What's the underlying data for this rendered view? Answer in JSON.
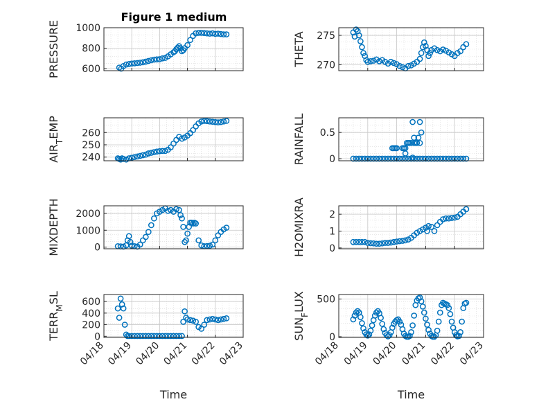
{
  "figure": {
    "title": "Figure 1 medium"
  },
  "style": {
    "marker_color": "#0072BD",
    "axis_color": "#262626",
    "grid_color": "#d9d9d9",
    "background": "#ffffff"
  },
  "chart_data": [
    {
      "type": "scatter",
      "ylabel": "PRESSURE",
      "ylabel_main": "PRESSURE",
      "ylabel_sub": "",
      "ylabel_tail": "",
      "xlabel": "",
      "xlim": [
        0,
        5
      ],
      "ylim": [
        580,
        1000
      ],
      "yticks": [
        600,
        800,
        1000
      ],
      "xticks_shown": false,
      "grid": true,
      "x": [
        0.55,
        0.62,
        0.7,
        0.8,
        0.9,
        1.0,
        1.1,
        1.2,
        1.3,
        1.4,
        1.5,
        1.6,
        1.7,
        1.8,
        1.9,
        2.0,
        2.1,
        2.2,
        2.3,
        2.4,
        2.5,
        2.55,
        2.6,
        2.65,
        2.7,
        2.75,
        2.8,
        2.85,
        2.9,
        3.0,
        3.1,
        3.2,
        3.3,
        3.4,
        3.5,
        3.6,
        3.7,
        3.8,
        3.9,
        4.0,
        4.1,
        4.2,
        4.3,
        4.4
      ],
      "y": [
        610,
        600,
        625,
        640,
        645,
        650,
        652,
        655,
        658,
        662,
        668,
        675,
        682,
        688,
        690,
        692,
        700,
        705,
        720,
        740,
        760,
        770,
        790,
        805,
        820,
        800,
        770,
        780,
        800,
        830,
        880,
        920,
        945,
        950,
        950,
        948,
        945,
        942,
        945,
        940,
        942,
        938,
        935,
        935
      ]
    },
    {
      "type": "scatter",
      "ylabel": "THETA",
      "ylabel_main": "THETA",
      "ylabel_sub": "",
      "ylabel_tail": "",
      "xlabel": "",
      "xlim": [
        0,
        5
      ],
      "ylim": [
        269,
        276.3
      ],
      "yticks": [
        270,
        275
      ],
      "xticks_shown": false,
      "grid": true,
      "x": [
        0.5,
        0.55,
        0.6,
        0.65,
        0.7,
        0.75,
        0.8,
        0.85,
        0.9,
        0.95,
        1.0,
        1.1,
        1.2,
        1.3,
        1.4,
        1.5,
        1.6,
        1.7,
        1.8,
        1.9,
        2.0,
        2.1,
        2.2,
        2.3,
        2.4,
        2.5,
        2.6,
        2.7,
        2.8,
        2.85,
        2.9,
        2.95,
        3.0,
        3.05,
        3.1,
        3.15,
        3.2,
        3.3,
        3.4,
        3.5,
        3.6,
        3.7,
        3.8,
        3.9,
        4.0,
        4.1,
        4.2,
        4.3,
        4.4
      ],
      "y": [
        275.5,
        274.8,
        276,
        275.7,
        275,
        274,
        273,
        272,
        271.5,
        270.8,
        270.5,
        270.6,
        270.7,
        270.9,
        270.6,
        270.8,
        270.5,
        270.2,
        270.5,
        270.3,
        270.1,
        269.8,
        269.6,
        269.4,
        269.8,
        269.9,
        270.2,
        270.5,
        271,
        272,
        273,
        273.8,
        273.2,
        272.5,
        271.5,
        272,
        272.5,
        272.8,
        272.5,
        272.3,
        272.6,
        272.4,
        272.1,
        271.8,
        271.5,
        272,
        272.3,
        273,
        273.5
      ]
    },
    {
      "type": "scatter",
      "ylabel": "AIR_TEMP",
      "ylabel_main": "AIR",
      "ylabel_sub": "T",
      "ylabel_tail": "EMP",
      "xlabel": "",
      "xlim": [
        0,
        5
      ],
      "ylim": [
        237,
        272
      ],
      "yticks": [
        240,
        250,
        260
      ],
      "xticks_shown": false,
      "grid": true,
      "x": [
        0.5,
        0.55,
        0.6,
        0.65,
        0.7,
        0.8,
        0.9,
        1.0,
        1.1,
        1.2,
        1.3,
        1.4,
        1.5,
        1.6,
        1.7,
        1.8,
        1.9,
        2.0,
        2.1,
        2.2,
        2.3,
        2.4,
        2.5,
        2.6,
        2.7,
        2.8,
        2.9,
        3.0,
        3.1,
        3.2,
        3.3,
        3.4,
        3.5,
        3.6,
        3.7,
        3.8,
        3.9,
        4.0,
        4.1,
        4.2,
        4.3,
        4.4
      ],
      "y": [
        239,
        238.5,
        238,
        239,
        238.5,
        238,
        239,
        239.5,
        240,
        240.5,
        241,
        241.5,
        242,
        243,
        243.5,
        244,
        244.5,
        244.8,
        245,
        245,
        246,
        248,
        251,
        254,
        256.5,
        255,
        256,
        257.5,
        259.5,
        262,
        265,
        267.5,
        269,
        269.5,
        269.3,
        269,
        268.8,
        268.5,
        268.3,
        268.5,
        269,
        269.5
      ]
    },
    {
      "type": "scatter",
      "ylabel": "RAINFALL",
      "ylabel_main": "RAINFALL",
      "ylabel_sub": "",
      "ylabel_tail": "",
      "xlabel": "",
      "xlim": [
        0,
        5
      ],
      "ylim": [
        -0.04,
        0.78
      ],
      "yticks": [
        0,
        0.5
      ],
      "ytick_labels": [
        "0",
        "0.5"
      ],
      "xticks_shown": false,
      "grid": true,
      "x": [
        0.5,
        0.6,
        0.7,
        0.8,
        0.9,
        1.0,
        1.1,
        1.2,
        1.3,
        1.4,
        1.5,
        1.6,
        1.7,
        1.8,
        1.9,
        2.0,
        2.1,
        2.2,
        2.3,
        2.4,
        2.5,
        2.6,
        2.7,
        2.8,
        2.9,
        3.0,
        3.1,
        3.2,
        3.3,
        3.4,
        3.5,
        3.6,
        3.7,
        3.8,
        3.9,
        4.0,
        4.1,
        4.2,
        4.3,
        4.4,
        1.85,
        1.9,
        1.95,
        2.0,
        2.2,
        2.25,
        2.3,
        2.35,
        2.4,
        2.5,
        2.6,
        2.65,
        2.7,
        2.3,
        2.45,
        2.6,
        2.75,
        2.8,
        2.55,
        2.8,
        2.55,
        2.85
      ],
      "y": [
        0,
        0,
        0,
        0,
        0,
        0,
        0,
        0,
        0,
        0,
        0,
        0,
        0,
        0,
        0,
        0,
        0,
        0,
        0,
        0,
        0,
        0,
        0,
        0,
        0,
        0,
        0,
        0,
        0,
        0,
        0,
        0,
        0,
        0,
        0,
        0,
        0,
        0,
        0,
        0,
        0.2,
        0.2,
        0.2,
        0.2,
        0.2,
        0.2,
        0.2,
        0.3,
        0.3,
        0.3,
        0.3,
        0.3,
        0.3,
        0.1,
        0.3,
        0.4,
        0.4,
        0.3,
        0.7,
        0.7,
        0.02,
        0.5
      ]
    },
    {
      "type": "scatter",
      "ylabel": "MIXDEPTH",
      "ylabel_main": "MIXDEPTH",
      "ylabel_sub": "",
      "ylabel_tail": "",
      "xlabel": "",
      "xlim": [
        0,
        5
      ],
      "ylim": [
        -100,
        2450
      ],
      "yticks": [
        0,
        1000,
        2000
      ],
      "xticks_shown": false,
      "grid": true,
      "x": [
        0.5,
        0.6,
        0.7,
        0.8,
        0.85,
        0.9,
        0.95,
        1.0,
        1.1,
        1.2,
        1.3,
        1.4,
        1.5,
        1.6,
        1.7,
        1.8,
        1.9,
        2.0,
        2.1,
        2.2,
        2.3,
        2.4,
        2.5,
        2.6,
        2.7,
        2.75,
        2.8,
        2.85,
        2.9,
        2.95,
        3.0,
        3.05,
        3.1,
        3.15,
        3.2,
        3.25,
        3.3,
        3.4,
        3.5,
        3.6,
        3.7,
        3.8,
        3.9,
        4.0,
        4.1,
        4.2,
        4.3,
        4.4
      ],
      "y": [
        50,
        40,
        30,
        100,
        400,
        650,
        300,
        80,
        50,
        30,
        150,
        400,
        600,
        900,
        1300,
        1700,
        2000,
        2100,
        2200,
        2300,
        2150,
        2200,
        2100,
        2250,
        2200,
        1900,
        1700,
        1200,
        300,
        400,
        800,
        1200,
        1450,
        1450,
        1400,
        1450,
        1400,
        400,
        100,
        50,
        60,
        80,
        150,
        400,
        700,
        900,
        1050,
        1150
      ]
    },
    {
      "type": "scatter",
      "ylabel": "H2OMIXRA",
      "ylabel_main": "H2OMIXRA",
      "ylabel_sub": "",
      "ylabel_tail": "",
      "xlabel": "",
      "xlim": [
        0,
        5
      ],
      "ylim": [
        -0.05,
        2.5
      ],
      "yticks": [
        0,
        1,
        2
      ],
      "xticks_shown": false,
      "grid": true,
      "x": [
        0.5,
        0.6,
        0.7,
        0.8,
        0.9,
        1.0,
        1.1,
        1.2,
        1.3,
        1.4,
        1.5,
        1.6,
        1.7,
        1.8,
        1.9,
        2.0,
        2.1,
        2.2,
        2.3,
        2.4,
        2.5,
        2.6,
        2.7,
        2.8,
        2.9,
        3.0,
        3.05,
        3.1,
        3.2,
        3.3,
        3.4,
        3.5,
        3.6,
        3.7,
        3.8,
        3.9,
        4.0,
        4.1,
        4.2,
        4.3,
        4.4
      ],
      "y": [
        0.35,
        0.35,
        0.35,
        0.35,
        0.35,
        0.3,
        0.28,
        0.27,
        0.25,
        0.25,
        0.27,
        0.3,
        0.3,
        0.32,
        0.35,
        0.38,
        0.4,
        0.42,
        0.45,
        0.5,
        0.6,
        0.75,
        0.9,
        1.0,
        1.1,
        1.2,
        1.0,
        1.3,
        1.25,
        1.0,
        1.35,
        1.55,
        1.7,
        1.75,
        1.75,
        1.78,
        1.8,
        1.85,
        2.0,
        2.15,
        2.3
      ]
    },
    {
      "type": "scatter",
      "ylabel": "TERR_MSL",
      "ylabel_main": "TERR",
      "ylabel_sub": "M",
      "ylabel_tail": "SL",
      "xlabel": "Time",
      "xlim": [
        0,
        5
      ],
      "ylim": [
        -20,
        720
      ],
      "yticks": [
        0,
        200,
        400,
        600
      ],
      "xticks_shown": true,
      "xtick_positions": [
        0,
        1,
        2,
        3,
        4,
        5
      ],
      "xtick_labels": [
        "04/18",
        "04/19",
        "04/20",
        "04/21",
        "04/22",
        "04/23"
      ],
      "grid": true,
      "x": [
        0.5,
        0.55,
        0.6,
        0.65,
        0.7,
        0.75,
        0.8,
        0.85,
        0.9,
        1.0,
        1.1,
        1.2,
        1.3,
        1.4,
        1.5,
        1.6,
        1.7,
        1.8,
        1.9,
        2.0,
        2.1,
        2.2,
        2.3,
        2.4,
        2.5,
        2.6,
        2.7,
        2.8,
        2.85,
        2.9,
        2.95,
        3.0,
        3.1,
        3.2,
        3.3,
        3.4,
        3.5,
        3.6,
        3.7,
        3.8,
        3.9,
        4.0,
        4.1,
        4.2,
        4.3,
        4.4
      ],
      "y": [
        480,
        320,
        650,
        550,
        480,
        200,
        30,
        5,
        5,
        5,
        5,
        5,
        5,
        5,
        5,
        5,
        5,
        5,
        5,
        5,
        5,
        5,
        5,
        5,
        5,
        5,
        5,
        5,
        250,
        430,
        320,
        290,
        280,
        270,
        250,
        160,
        130,
        200,
        280,
        290,
        300,
        290,
        280,
        290,
        300,
        310
      ]
    },
    {
      "type": "scatter",
      "ylabel": "SUN_FLUX",
      "ylabel_main": "SUN",
      "ylabel_sub": "F",
      "ylabel_tail": "LUX",
      "xlabel": "Time",
      "xlim": [
        0,
        5
      ],
      "ylim": [
        -10,
        560
      ],
      "yticks": [
        0,
        500
      ],
      "xticks_shown": true,
      "xtick_positions": [
        0,
        1,
        2,
        3,
        4,
        5
      ],
      "xtick_labels": [
        "04/18",
        "04/19",
        "04/20",
        "04/21",
        "04/22",
        "04/23"
      ],
      "grid": true,
      "x": [
        0.5,
        0.55,
        0.6,
        0.65,
        0.7,
        0.75,
        0.8,
        0.85,
        0.9,
        0.95,
        1.0,
        1.05,
        1.1,
        1.15,
        1.2,
        1.25,
        1.3,
        1.35,
        1.4,
        1.45,
        1.5,
        1.55,
        1.6,
        1.65,
        1.7,
        1.75,
        1.8,
        1.85,
        1.9,
        1.95,
        2.0,
        2.05,
        2.1,
        2.15,
        2.2,
        2.25,
        2.3,
        2.35,
        2.4,
        2.45,
        2.5,
        2.55,
        2.6,
        2.65,
        2.7,
        2.75,
        2.8,
        2.85,
        2.9,
        2.95,
        3.0,
        3.05,
        3.1,
        3.15,
        3.2,
        3.25,
        3.3,
        3.35,
        3.4,
        3.45,
        3.5,
        3.55,
        3.6,
        3.65,
        3.7,
        3.75,
        3.8,
        3.85,
        3.9,
        3.95,
        4.0,
        4.05,
        4.1,
        4.15,
        4.2,
        4.25,
        4.3,
        4.35,
        4.4
      ],
      "y": [
        230,
        280,
        320,
        340,
        320,
        260,
        180,
        110,
        60,
        30,
        15,
        30,
        80,
        150,
        220,
        280,
        320,
        340,
        310,
        250,
        170,
        100,
        50,
        20,
        5,
        20,
        60,
        120,
        170,
        200,
        220,
        230,
        200,
        160,
        100,
        40,
        10,
        0,
        0,
        10,
        60,
        150,
        280,
        420,
        480,
        510,
        520,
        470,
        400,
        320,
        240,
        160,
        90,
        40,
        10,
        0,
        0,
        20,
        80,
        200,
        320,
        420,
        450,
        440,
        430,
        420,
        380,
        300,
        200,
        120,
        60,
        20,
        5,
        10,
        60,
        200,
        380,
        440,
        450
      ]
    }
  ]
}
